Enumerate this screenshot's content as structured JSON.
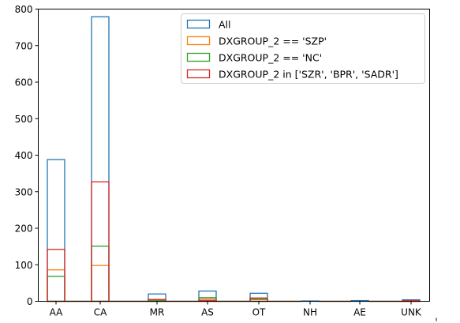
{
  "chart_data": {
    "type": "bar",
    "style": "step-histogram-overlay",
    "categories": [
      "AA",
      "CA",
      "MR",
      "AS",
      "OT",
      "NH",
      "AE",
      "UNK"
    ],
    "series": [
      {
        "name": "All",
        "color": "#1f77b4",
        "values": [
          388,
          779,
          20,
          28,
          22,
          1,
          2,
          4
        ]
      },
      {
        "name": "DXGROUP_2 == 'SZP'",
        "color": "#ff7f0e",
        "values": [
          86,
          98,
          3,
          8,
          7,
          0,
          0,
          1
        ]
      },
      {
        "name": "DXGROUP_2 == 'NC'",
        "color": "#2ca02c",
        "values": [
          68,
          151,
          2,
          10,
          5,
          0,
          0,
          1
        ]
      },
      {
        "name": "DXGROUP_2 in ['SZR', 'BPR', 'SADR']",
        "color": "#d62728",
        "values": [
          142,
          327,
          5,
          3,
          9,
          0,
          0,
          2
        ]
      }
    ],
    "ylim": [
      0,
      800
    ],
    "yticks": [
      0,
      100,
      200,
      300,
      400,
      500,
      600,
      700,
      800
    ],
    "grid": false,
    "legend_position": "top-right",
    "title": "",
    "xlabel": "",
    "ylabel": ""
  }
}
